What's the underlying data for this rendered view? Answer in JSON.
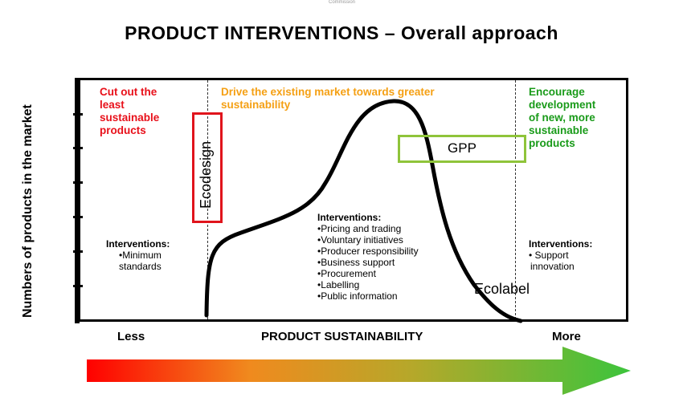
{
  "header": {
    "top_note": "Commission",
    "title": "PRODUCT INTERVENTIONS – Overall approach"
  },
  "y_axis_label": "Numbers of products in the market",
  "zones": {
    "left": {
      "heading": [
        "Cut out the",
        "least",
        "sustainable",
        "products"
      ],
      "heading_color": "#e8101a",
      "interventions_title": "Interventions:",
      "interventions": [
        "•Minimum",
        "standards"
      ]
    },
    "middle": {
      "heading": [
        "Drive the existing market towards greater",
        "sustainability"
      ],
      "heading_color": "#f5a014",
      "interventions_title": "Interventions:",
      "interventions": [
        "•Pricing and trading",
        "•Voluntary initiatives",
        "•Producer responsibility",
        "•Business support",
        "•Procurement",
        "•Labelling",
        "•Public information"
      ]
    },
    "right": {
      "heading": [
        "Encourage",
        "development",
        "of new, more",
        "sustainable",
        "products"
      ],
      "heading_color": "#1a9b1a",
      "interventions_title": "Interventions:",
      "interventions": [
        "• Support",
        "innovation"
      ]
    }
  },
  "tool_labels": {
    "ecodesign": "Ecodesign",
    "ecodesign_color": "#e0141c",
    "gpp": "GPP",
    "gpp_color": "#8fc43a",
    "ecolabel": "Ecolabel"
  },
  "x_axis": {
    "left": "Less",
    "center": "PRODUCT SUSTAINABILITY",
    "right": "More"
  },
  "arrow": {
    "gradient": [
      "#ff0000",
      "#f08a1e",
      "#b5a82a",
      "#3cc43c"
    ]
  }
}
